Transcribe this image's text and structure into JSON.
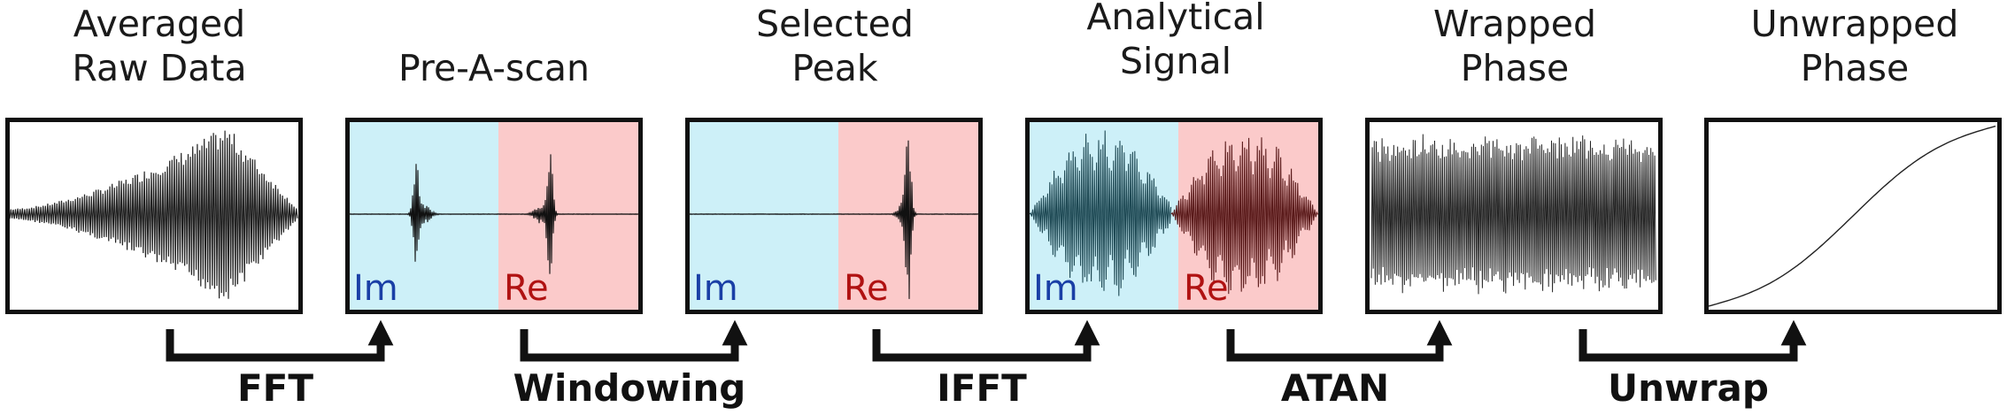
{
  "stages": [
    {
      "id": "raw",
      "title": [
        "Averaged",
        "Raw Data"
      ]
    },
    {
      "id": "prea",
      "title": [
        "Pre-A-scan"
      ],
      "halves": {
        "left": "Im",
        "right": "Re"
      }
    },
    {
      "id": "peak",
      "title": [
        "Selected",
        "Peak"
      ],
      "halves": {
        "left": "Im",
        "right": "Re"
      }
    },
    {
      "id": "analytic",
      "title": [
        "Analytical",
        "Signal"
      ],
      "halves": {
        "left": "Im",
        "right": "Re"
      }
    },
    {
      "id": "wrapped",
      "title": [
        "Wrapped",
        "Phase"
      ]
    },
    {
      "id": "unwrapped",
      "title": [
        "Unwrapped",
        "Phase"
      ]
    }
  ],
  "steps": [
    "FFT",
    "Windowing",
    "IFFT",
    "ATAN",
    "Unwrap"
  ],
  "colors": {
    "im_bg": "#cdf0f8",
    "re_bg": "#fbcaca",
    "im_text": "#1a3fa6",
    "re_text": "#b01212",
    "signal": "#222222",
    "im_signal": "#1f4a55",
    "re_signal": "#5a1a1a"
  }
}
